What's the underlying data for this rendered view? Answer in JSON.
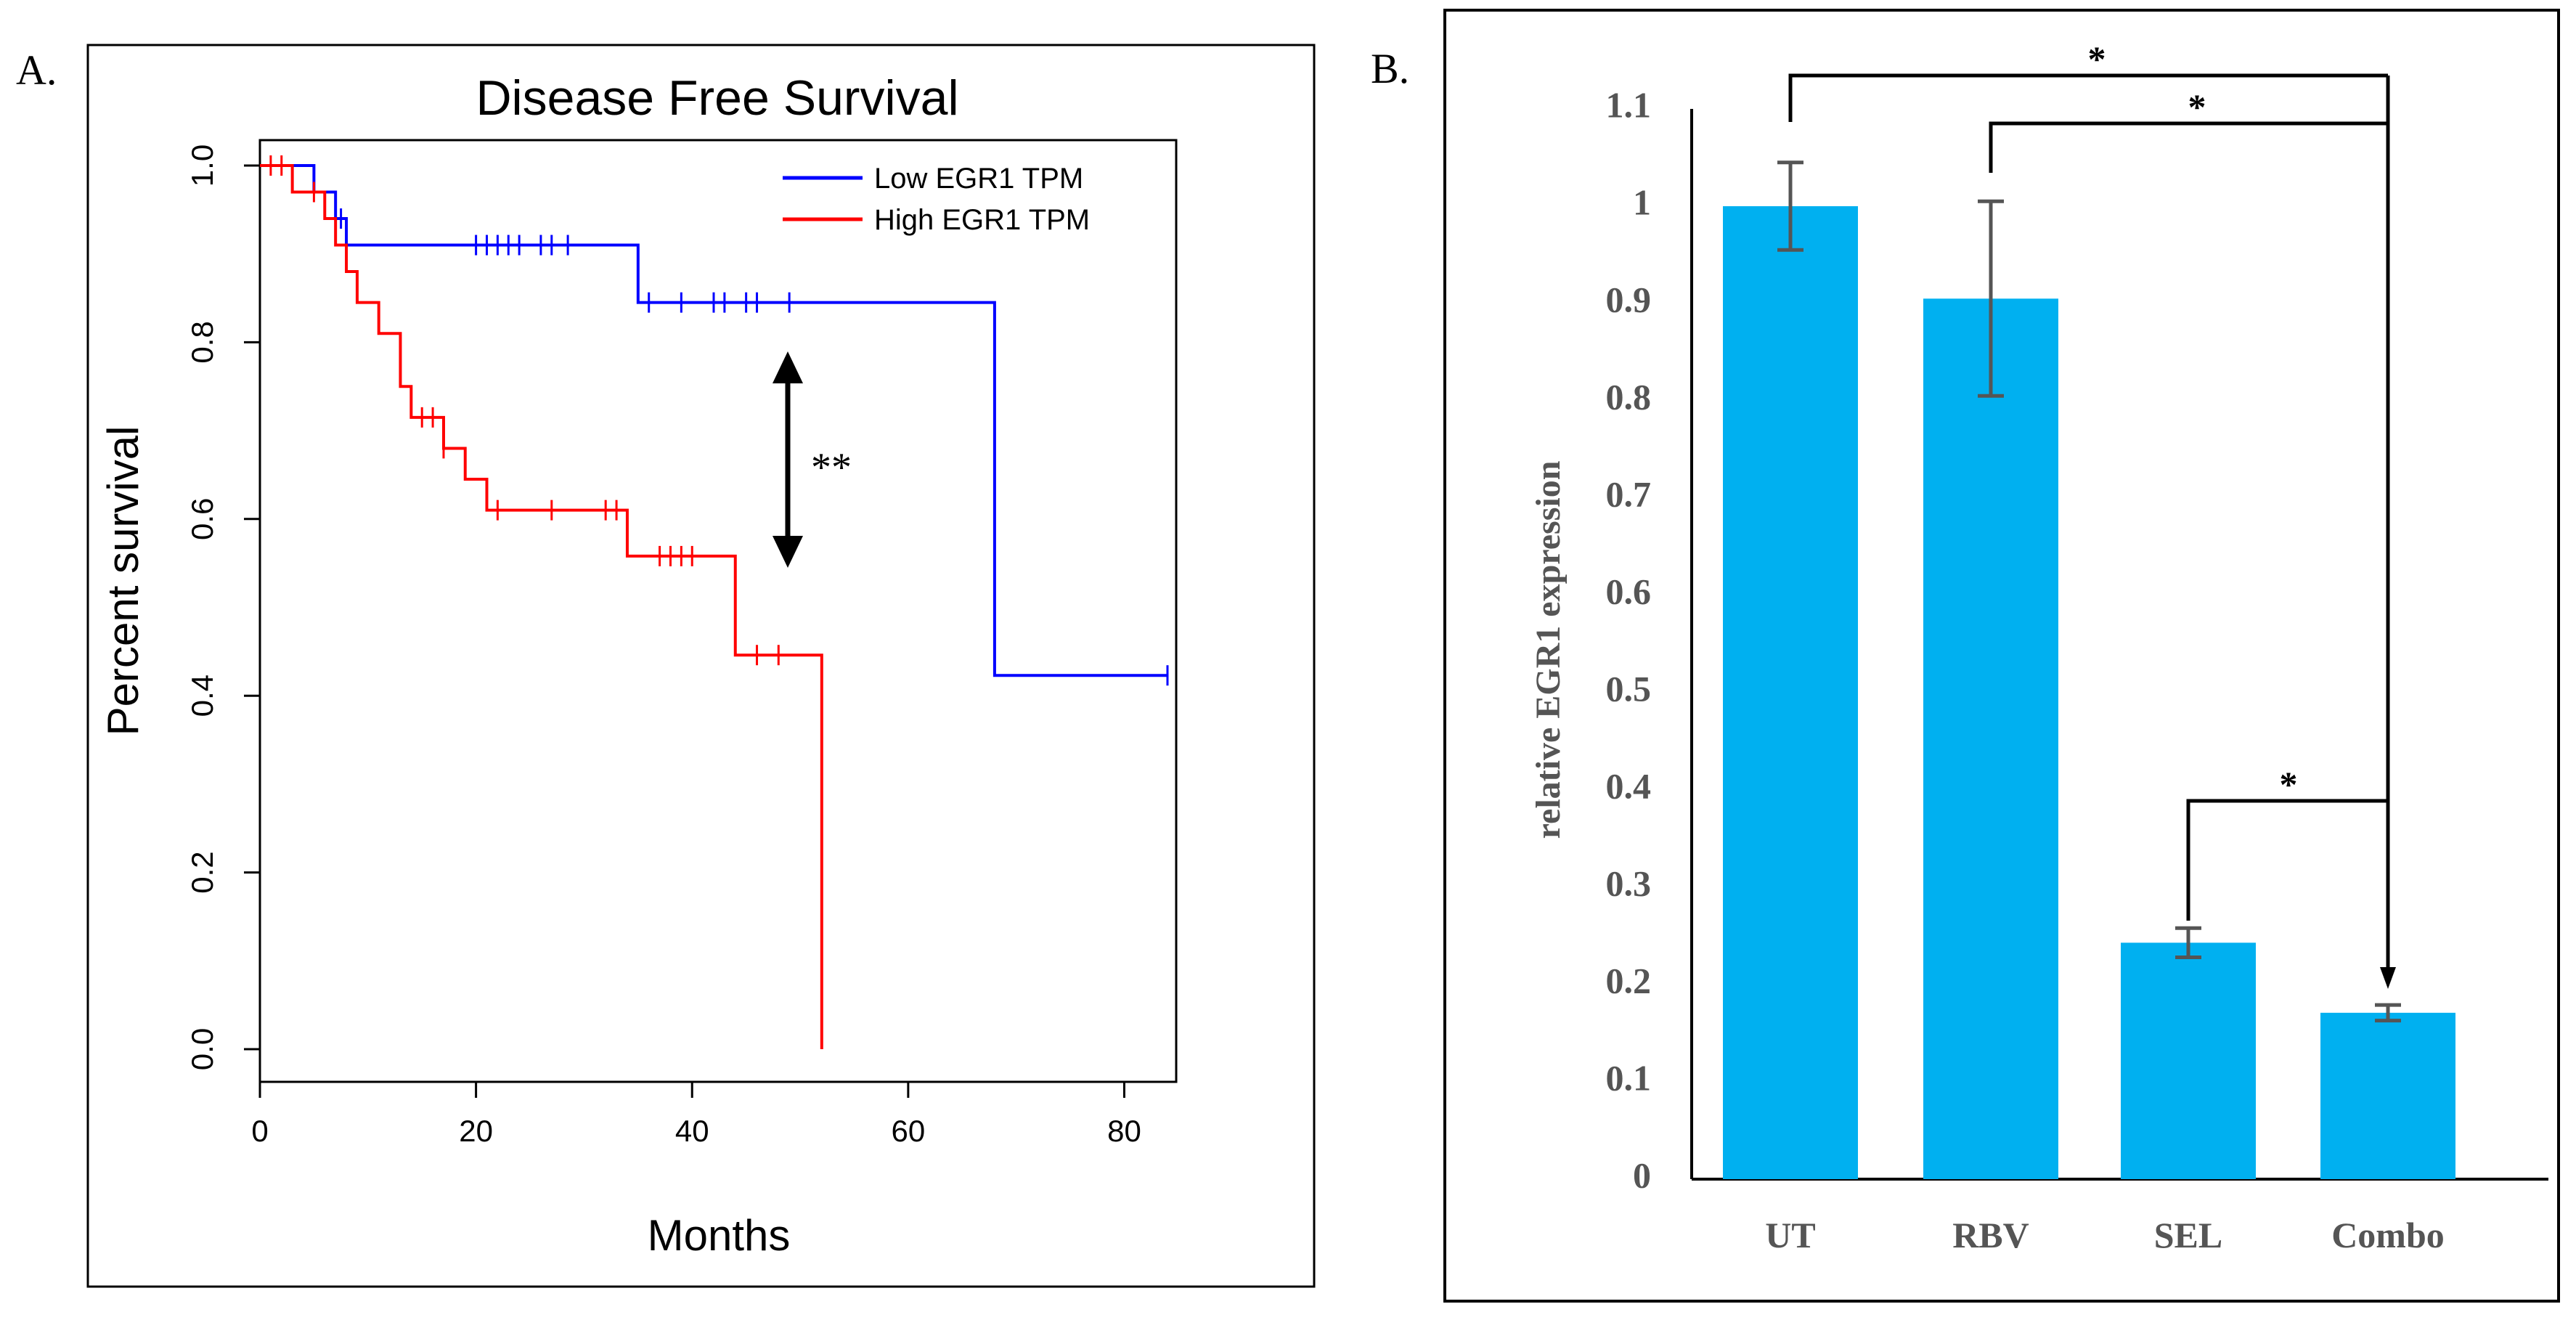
{
  "panels": {
    "a_label": "A.",
    "b_label": "B."
  },
  "chart_data": [
    {
      "type": "line",
      "subtype": "kaplan-meier",
      "title": "Disease Free Survival",
      "xlabel": "Months",
      "ylabel": "Percent survival",
      "xlim": [
        0,
        84
      ],
      "ylim": [
        0,
        1
      ],
      "xticks": [
        "0",
        "20",
        "40",
        "60",
        "80"
      ],
      "yticks": [
        "0.0",
        "0.2",
        "0.4",
        "0.6",
        "0.8",
        "1.0"
      ],
      "legend_position": "top-right",
      "annotation": "**",
      "series": [
        {
          "name": "Low EGR1 TPM",
          "color": "#0000ff",
          "steps": [
            [
              0,
              1.0
            ],
            [
              5,
              0.97
            ],
            [
              7,
              0.94
            ],
            [
              8,
              0.91
            ],
            [
              35,
              0.845
            ],
            [
              68,
              0.423
            ],
            [
              84,
              0.423
            ]
          ],
          "censor": [
            7.5,
            20,
            21,
            22,
            23,
            24,
            26,
            27,
            28.5,
            36,
            39,
            42,
            43,
            45,
            46,
            49,
            84
          ]
        },
        {
          "name": "High EGR1 TPM",
          "color": "#ff0000",
          "steps": [
            [
              0,
              1.0
            ],
            [
              3,
              0.97
            ],
            [
              6,
              0.94
            ],
            [
              7,
              0.91
            ],
            [
              8,
              0.88
            ],
            [
              9,
              0.845
            ],
            [
              11,
              0.81
            ],
            [
              13,
              0.75
            ],
            [
              14,
              0.715
            ],
            [
              17,
              0.68
            ],
            [
              19,
              0.645
            ],
            [
              21,
              0.61
            ],
            [
              34,
              0.558
            ],
            [
              44,
              0.446
            ],
            [
              52,
              0.0
            ]
          ],
          "censor": [
            1,
            2,
            5,
            15,
            16,
            17,
            22,
            27,
            32,
            33,
            37,
            38,
            39,
            40,
            46,
            48
          ]
        }
      ]
    },
    {
      "type": "bar",
      "xlabel": "",
      "ylabel": "relative EGR1 expression",
      "categories": [
        "UT",
        "RBV",
        "SEL",
        "Combo"
      ],
      "values": [
        1.0,
        0.905,
        0.243,
        0.171
      ],
      "errors": [
        0.045,
        0.1,
        0.015,
        0.008
      ],
      "ylim": [
        0,
        1.1
      ],
      "yticks": [
        "0",
        "0.1",
        "0.2",
        "0.3",
        "0.4",
        "0.5",
        "0.6",
        "0.7",
        "0.8",
        "0.9",
        "1",
        "1.1"
      ],
      "bar_color": "#00b0f0",
      "significance": [
        {
          "from": "UT",
          "to": "Combo",
          "label": "*"
        },
        {
          "from": "RBV",
          "to": "Combo",
          "label": "*"
        },
        {
          "from": "SEL",
          "to": "Combo",
          "label": "*"
        }
      ]
    }
  ]
}
